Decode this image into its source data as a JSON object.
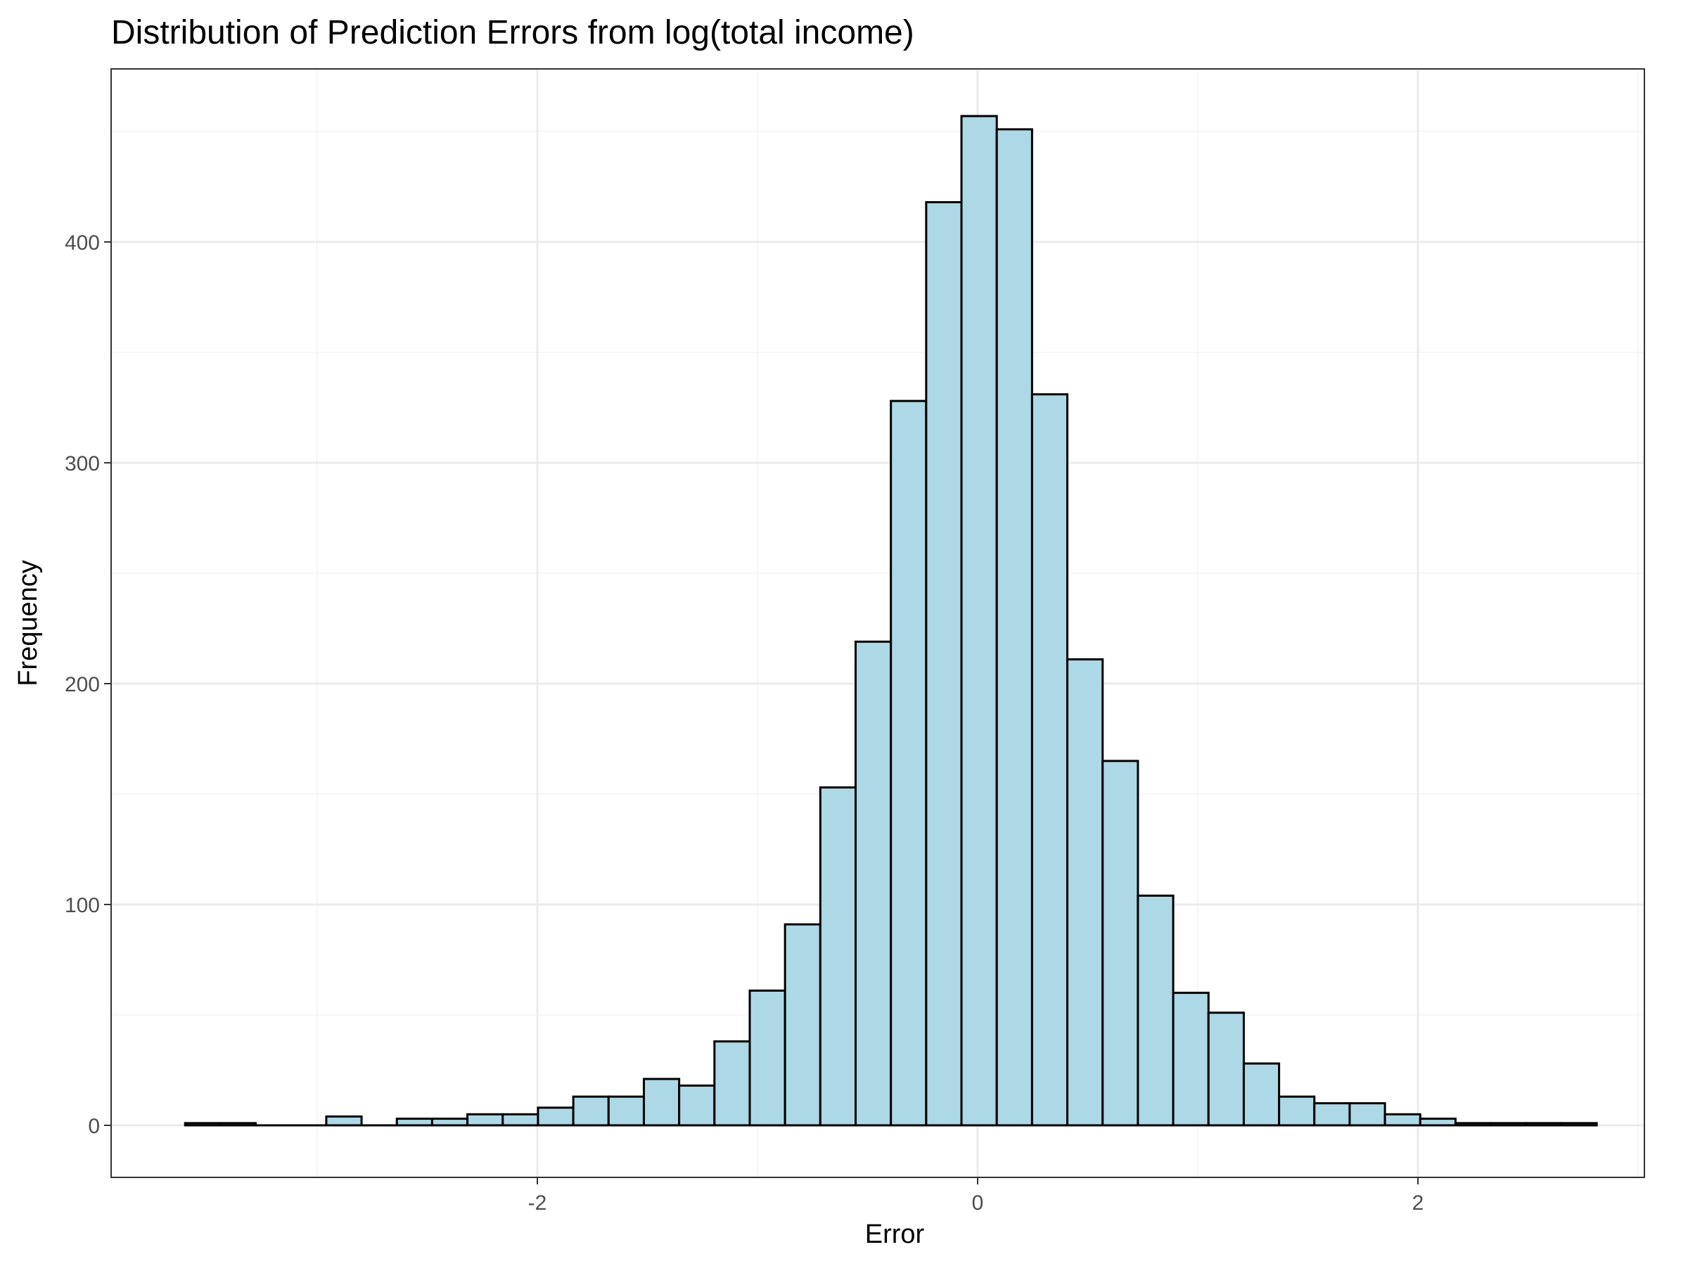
{
  "chart_data": {
    "type": "histogram",
    "title": "Distribution of Prediction Errors from log(total income)",
    "xlabel": "Error",
    "ylabel": "Frequency",
    "xlim": [
      -3.9,
      3.0
    ],
    "ylim": [
      -22,
      468
    ],
    "x_ticks": [
      -2,
      0,
      2
    ],
    "x_tick_labels": [
      "-2",
      "0",
      "2"
    ],
    "y_ticks": [
      0,
      100,
      200,
      300,
      400
    ],
    "y_tick_labels": [
      "0",
      "100",
      "200",
      "300",
      "400"
    ],
    "x_minor_gridlines": [
      -3,
      -1,
      1,
      3
    ],
    "y_minor_gridlines": [
      50,
      150,
      250,
      350,
      450
    ],
    "bin_width": 0.1603,
    "bins": [
      {
        "start": -3.6,
        "count": 1
      },
      {
        "start": -3.4397,
        "count": 1
      },
      {
        "start": -3.2794,
        "count": 0
      },
      {
        "start": -3.1191,
        "count": 0
      },
      {
        "start": -2.9588,
        "count": 4
      },
      {
        "start": -2.7985,
        "count": 0
      },
      {
        "start": -2.6382,
        "count": 3
      },
      {
        "start": -2.4779,
        "count": 3
      },
      {
        "start": -2.3176,
        "count": 5
      },
      {
        "start": -2.1573,
        "count": 5
      },
      {
        "start": -1.997,
        "count": 8
      },
      {
        "start": -1.8367,
        "count": 13
      },
      {
        "start": -1.6764,
        "count": 13
      },
      {
        "start": -1.5161,
        "count": 21
      },
      {
        "start": -1.3558,
        "count": 18
      },
      {
        "start": -1.1955,
        "count": 38
      },
      {
        "start": -1.0352,
        "count": 61
      },
      {
        "start": -0.8749,
        "count": 91
      },
      {
        "start": -0.7146,
        "count": 153
      },
      {
        "start": -0.5543,
        "count": 219
      },
      {
        "start": -0.394,
        "count": 328
      },
      {
        "start": -0.2337,
        "count": 418
      },
      {
        "start": -0.0734,
        "count": 457
      },
      {
        "start": 0.0869,
        "count": 451
      },
      {
        "start": 0.2472,
        "count": 331
      },
      {
        "start": 0.4075,
        "count": 211
      },
      {
        "start": 0.5678,
        "count": 165
      },
      {
        "start": 0.7281,
        "count": 104
      },
      {
        "start": 0.8884,
        "count": 60
      },
      {
        "start": 1.0487,
        "count": 51
      },
      {
        "start": 1.209,
        "count": 28
      },
      {
        "start": 1.3693,
        "count": 13
      },
      {
        "start": 1.5296,
        "count": 10
      },
      {
        "start": 1.6899,
        "count": 10
      },
      {
        "start": 1.8502,
        "count": 5
      },
      {
        "start": 2.0105,
        "count": 3
      },
      {
        "start": 2.1708,
        "count": 1
      },
      {
        "start": 2.3311,
        "count": 1
      },
      {
        "start": 2.4914,
        "count": 1
      },
      {
        "start": 2.6517,
        "count": 1
      }
    ],
    "colors": {
      "bar_fill": "#add8e6",
      "bar_stroke": "#000000",
      "major_grid": "#ebebeb",
      "minor_grid": "#f3f3f3",
      "panel_border": "#333333",
      "tick_label": "#4d4d4d"
    }
  }
}
